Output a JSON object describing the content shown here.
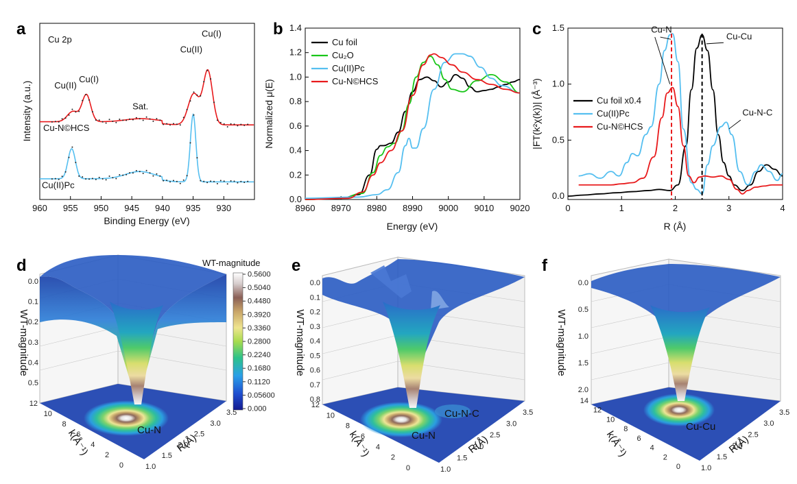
{
  "colors": {
    "black": "#000000",
    "red": "#e8191b",
    "green": "#19c619",
    "blue": "#55bff0",
    "dot": "#222222"
  },
  "panels": {
    "a": "a",
    "b": "b",
    "c": "c",
    "d": "d",
    "e": "e",
    "f": "f"
  },
  "chart_data": [
    {
      "id": "a",
      "type": "line",
      "title": "",
      "xlabel": "Binding Energy (eV)",
      "ylabel": "Intensity (a.u.)",
      "xlim": [
        960,
        925
      ],
      "xticks": [
        960,
        955,
        950,
        945,
        940,
        935,
        930
      ],
      "inner_label": "Cu 2p",
      "series": [
        {
          "name": "Cu-N©HCS",
          "color": "red",
          "offset": 0.55,
          "peaks": [
            [
              952.4,
              0.26,
              0.7
            ],
            [
              954.6,
              0.1,
              0.9
            ],
            [
              932.6,
              0.52,
              0.75
            ],
            [
              934.9,
              0.3,
              0.9
            ],
            [
              943.5,
              0.03,
              2.5
            ]
          ]
        },
        {
          "name": "Cu(II)Pc",
          "color": "blue",
          "offset": 0.0,
          "peaks": [
            [
              954.8,
              0.29,
              0.6
            ],
            [
              935.0,
              0.65,
              0.45
            ],
            [
              943.7,
              0.07,
              2.3
            ]
          ]
        }
      ],
      "annotations": [
        {
          "text": "Cu(II)",
          "x": 955.8,
          "y": 1.02
        },
        {
          "text": "Cu(I)",
          "x": 952.0,
          "y": 1.08
        },
        {
          "text": "Sat.",
          "x": 943.6,
          "y": 0.82
        },
        {
          "text": "Cu(II)",
          "x": 935.3,
          "y": 1.37
        },
        {
          "text": "Cu(I)",
          "x": 932.0,
          "y": 1.52
        }
      ]
    },
    {
      "id": "b",
      "type": "line",
      "title": "",
      "xlabel": "Energy (eV)",
      "ylabel": "Normalized μ(E)",
      "xlim": [
        8960,
        9020
      ],
      "ylim": [
        0.0,
        1.4
      ],
      "xticks": [
        8960,
        8970,
        8980,
        8990,
        9000,
        9010,
        9020
      ],
      "yticks": [
        0.0,
        0.2,
        0.4,
        0.6,
        0.8,
        1.0,
        1.2,
        1.4
      ],
      "series": [
        {
          "name": "Cu foil",
          "color": "black",
          "x": [
            8960,
            8970,
            8975,
            8978,
            8980,
            8981,
            8982,
            8984,
            8986,
            8988,
            8990,
            8992,
            8994,
            8996,
            8998,
            9000,
            9002,
            9004,
            9006,
            9008,
            9010,
            9012,
            9014,
            9016,
            9018,
            9020
          ],
          "y": [
            0.0,
            0.01,
            0.04,
            0.2,
            0.41,
            0.44,
            0.44,
            0.46,
            0.55,
            0.72,
            0.88,
            0.98,
            1.0,
            0.97,
            0.92,
            0.96,
            1.02,
            0.99,
            0.92,
            0.88,
            0.89,
            0.9,
            0.92,
            0.94,
            0.96,
            0.98
          ]
        },
        {
          "name": "Cu₂O",
          "color": "green",
          "x": [
            8960,
            8970,
            8976,
            8979,
            8981,
            8983,
            8985,
            8987,
            8989,
            8991,
            8993,
            8995,
            8997,
            8999,
            9001,
            9004,
            9008,
            9012,
            9016,
            9020
          ],
          "y": [
            0.0,
            0.01,
            0.05,
            0.22,
            0.36,
            0.43,
            0.46,
            0.56,
            0.78,
            1.0,
            1.12,
            1.17,
            1.1,
            0.98,
            0.9,
            0.88,
            0.97,
            1.02,
            0.96,
            0.87
          ]
        },
        {
          "name": "Cu(II)Pc",
          "color": "blue",
          "x": [
            8960,
            8975,
            8980,
            8983,
            8986,
            8988,
            8989,
            8990,
            8991,
            8993,
            8996,
            8999,
            9002,
            9004,
            9006,
            9009,
            9012,
            9015,
            9020
          ],
          "y": [
            0.01,
            0.02,
            0.04,
            0.08,
            0.22,
            0.44,
            0.5,
            0.42,
            0.42,
            0.58,
            0.9,
            1.12,
            1.19,
            1.19,
            1.17,
            1.08,
            0.99,
            0.93,
            0.87
          ]
        },
        {
          "name": "Cu-N©HCS",
          "color": "red",
          "x": [
            8960,
            8972,
            8976,
            8979,
            8981,
            8984,
            8987,
            8990,
            8993,
            8995,
            8996,
            8998,
            9001,
            9004,
            9008,
            9012,
            9016,
            9020
          ],
          "y": [
            0.0,
            0.01,
            0.06,
            0.2,
            0.3,
            0.4,
            0.56,
            0.85,
            1.1,
            1.18,
            1.19,
            1.16,
            1.1,
            1.04,
            0.98,
            0.94,
            0.9,
            0.87
          ]
        }
      ]
    },
    {
      "id": "c",
      "type": "line",
      "title": "",
      "xlabel": "R (Å)",
      "ylabel": "|FT(k²χ(k))| (Å⁻³)",
      "xlim": [
        0,
        4
      ],
      "ylim": [
        0.0,
        1.5
      ],
      "xticks": [
        0,
        1,
        2,
        3,
        4
      ],
      "yticks": [
        0.0,
        0.5,
        1.0,
        1.5
      ],
      "series": [
        {
          "name": "Cu foil x0.4",
          "color": "black",
          "x": [
            0.0,
            0.3,
            0.6,
            0.9,
            1.2,
            1.5,
            1.7,
            1.9,
            2.05,
            2.2,
            2.3,
            2.4,
            2.5,
            2.6,
            2.7,
            2.8,
            2.9,
            3.0,
            3.1,
            3.25,
            3.4,
            3.55,
            3.7,
            3.85,
            4.0
          ],
          "y": [
            0.0,
            0.01,
            0.02,
            0.03,
            0.04,
            0.05,
            0.06,
            0.05,
            0.1,
            0.45,
            0.95,
            1.32,
            1.44,
            1.3,
            0.95,
            0.55,
            0.3,
            0.18,
            0.1,
            0.05,
            0.1,
            0.22,
            0.28,
            0.24,
            0.18
          ]
        },
        {
          "name": "Cu(II)Pc",
          "color": "blue",
          "x": [
            0.2,
            0.4,
            0.6,
            0.8,
            0.95,
            1.1,
            1.2,
            1.3,
            1.45,
            1.55,
            1.7,
            1.8,
            1.9,
            1.95,
            2.05,
            2.15,
            2.3,
            2.4,
            2.5,
            2.6,
            2.7,
            2.85,
            2.95,
            3.05,
            3.2,
            3.35,
            3.5,
            3.6,
            3.75,
            3.9,
            4.0
          ],
          "y": [
            0.18,
            0.2,
            0.16,
            0.22,
            0.18,
            0.3,
            0.38,
            0.36,
            0.55,
            0.62,
            1.0,
            1.3,
            1.44,
            1.45,
            1.2,
            0.6,
            0.12,
            0.06,
            0.02,
            0.28,
            0.45,
            0.62,
            0.66,
            0.55,
            0.22,
            0.1,
            0.22,
            0.28,
            0.22,
            0.14,
            0.2
          ]
        },
        {
          "name": "Cu-N©HCS",
          "color": "red",
          "x": [
            0.2,
            0.5,
            0.8,
            1.0,
            1.2,
            1.4,
            1.6,
            1.75,
            1.85,
            1.95,
            2.05,
            2.15,
            2.25,
            2.35,
            2.45,
            2.55,
            2.7,
            2.85,
            3.0,
            3.15,
            3.25,
            3.35,
            3.5,
            3.65,
            3.8,
            4.0
          ],
          "y": [
            0.1,
            0.1,
            0.1,
            0.11,
            0.12,
            0.16,
            0.35,
            0.7,
            0.92,
            0.97,
            0.8,
            0.45,
            0.18,
            0.12,
            0.17,
            0.18,
            0.17,
            0.18,
            0.15,
            0.06,
            0.02,
            0.05,
            0.08,
            0.09,
            0.1,
            0.1
          ]
        }
      ],
      "annotations": [
        {
          "text": "Cu-N",
          "x": 1.55,
          "y": 1.46
        },
        {
          "text": "Cu-Cu",
          "x": 2.95,
          "y": 1.4
        },
        {
          "text": "Cu-N-C",
          "x": 3.25,
          "y": 0.72
        }
      ],
      "vlines": [
        {
          "x": 1.93,
          "color": "red"
        },
        {
          "x": 2.5,
          "color": "black"
        }
      ]
    },
    {
      "id": "d",
      "type": "heatmap",
      "title": "",
      "xlabel": "R(Å)",
      "ylabel": "k(Å⁻¹)",
      "zlabel": "WT-magnitude",
      "z_ticks": [
        "0.0",
        "0.1",
        "0.2",
        "0.3",
        "0.4",
        "0.5"
      ],
      "k_ticks": [
        "12",
        "10",
        "8",
        "6",
        "4",
        "2",
        "0"
      ],
      "r_ticks": [
        "1.0",
        "1.5",
        "2.0",
        "2.5",
        "3.0",
        "3.5"
      ],
      "peak_label": "Cu-N",
      "colorbar_label": "WT-magnitude",
      "colorbar_ticks": [
        "0.5600",
        "0.5040",
        "0.4480",
        "0.3920",
        "0.3360",
        "0.2800",
        "0.2240",
        "0.1680",
        "0.1120",
        "0.05600",
        "0.000"
      ]
    },
    {
      "id": "e",
      "type": "heatmap",
      "title": "",
      "xlabel": "R(Å)",
      "ylabel": "k(Å⁻¹)",
      "zlabel": "WT-magnitude",
      "z_ticks": [
        "0.0",
        "0.1",
        "0.2",
        "0.3",
        "0.4",
        "0.5",
        "0.6",
        "0.7",
        "0.8"
      ],
      "k_ticks": [
        "12",
        "10",
        "8",
        "6",
        "4",
        "2",
        "0"
      ],
      "r_ticks": [
        "1.0",
        "1.5",
        "2.0",
        "2.5",
        "3.0",
        "3.5"
      ],
      "peak_label": "Cu-N",
      "secondary_label": "Cu-N-C"
    },
    {
      "id": "f",
      "type": "heatmap",
      "title": "",
      "xlabel": "R(Å)",
      "ylabel": "k(Å⁻¹)",
      "zlabel": "WT-magnitude",
      "z_ticks": [
        "0.0",
        "0.5",
        "1.0",
        "1.5",
        "2.0"
      ],
      "k_ticks": [
        "14",
        "12",
        "10",
        "8",
        "6",
        "4",
        "2",
        "0"
      ],
      "r_ticks": [
        "1.0",
        "1.5",
        "2.0",
        "2.5",
        "3.0",
        "3.5"
      ],
      "peak_label": "Cu-Cu"
    }
  ]
}
